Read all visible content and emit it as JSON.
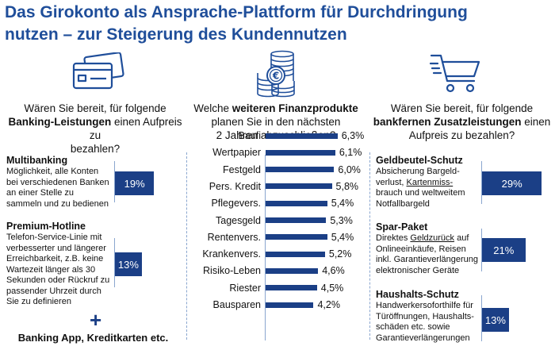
{
  "title_line1": "Das Girokonto als Ansprache-Plattform für Durchdringung",
  "title_line2": "nutzen – zur Steigerung des Kundennutzen",
  "icons": [
    "credit-cards-icon",
    "coin-stack-icon",
    "shopping-cart-icon"
  ],
  "colors": {
    "title": "#1f4e9a",
    "bar": "#1b3f86",
    "axis": "#8aa6cf"
  },
  "left": {
    "question_1": "Wären Sie bereit, für folgende",
    "question_2_bold": "Banking-Leistungen",
    "question_2_rest": " einen Aufpreis zu",
    "question_3": "bezahlen?",
    "items": [
      {
        "title": "Multibanking",
        "desc": [
          "Möglichkeit, alle Konten",
          "bei verschiedenen Banken",
          "an einer Stelle zu",
          "sammeln und zu bedienen"
        ],
        "value_label": "19%"
      },
      {
        "title": "Premium-Hotline",
        "desc": [
          "Telefon-Service-Linie mit",
          "verbesserter und längerer",
          "Erreichbarkeit, z.B. keine",
          "Wartezeit länger als 30",
          "Sekunden oder Rückruf zu",
          "passender Uhrzeit durch",
          "Sie zu definieren"
        ],
        "value_label": "13%"
      }
    ],
    "plus": "+",
    "footer": "Banking App, Kreditkarten etc."
  },
  "middle": {
    "question_1_pre": "Welche ",
    "question_1_bold": "weiteren Finanzprodukte",
    "question_2": "planen Sie in den nächsten",
    "question_3": "2 Jahren abzuschließen?",
    "value_labels": [
      "6,3%",
      "6,1%",
      "6,0%",
      "5,8%",
      "5,4%",
      "5,3%",
      "5,4%",
      "5,2%",
      "4,6%",
      "4,5%",
      "4,2%"
    ]
  },
  "right": {
    "question_1": "Wären Sie bereit, für folgende",
    "question_2_bold": "bankfernen Zusatzleistungen",
    "question_2_rest": " einen",
    "question_3": "Aufpreis zu bezahlen?",
    "items": [
      {
        "title": "Geldbeutel-Schutz",
        "desc_1": "Absicherung Bargeld-",
        "desc_2_pre": "verlust, ",
        "desc_2_u": "Kartenmiss-",
        "desc_3": "brauch und weltweitem",
        "desc_4": "Notfallbargeld",
        "value_label": "29%"
      },
      {
        "title": "Spar-Paket",
        "desc_1_pre": "Direktes ",
        "desc_1_u": "Geldzurück",
        "desc_1_post": " auf",
        "desc_2": "Onlineeinkäufe, Reisen",
        "desc_3": "inkl. Garantieverlängerung",
        "desc_4": "elektronischer Geräte",
        "value_label": "21%"
      },
      {
        "title": "Haushalts-Schutz",
        "desc_1": "Handwerkersoforthilfe für",
        "desc_2": "Türöffnungen, Haushalts-",
        "desc_3": "schäden etc. sowie",
        "desc_4": "Garantieverlängerungen",
        "value_label": "13%"
      }
    ]
  },
  "chart_data": [
    {
      "type": "bar",
      "orientation": "horizontal",
      "categories": [
        "Baufi",
        "Wertpapier",
        "Festgeld",
        "Pers. Kredit",
        "Pflegevers.",
        "Tagesgeld",
        "Rentenvers.",
        "Krankenvers.",
        "Risiko-Leben",
        "Riester",
        "Bausparen"
      ],
      "values": [
        6.3,
        6.1,
        6.0,
        5.8,
        5.4,
        5.3,
        5.4,
        5.2,
        4.6,
        4.5,
        4.2
      ],
      "unit": "%"
    },
    {
      "type": "bar",
      "orientation": "horizontal",
      "categories": [
        "Multibanking",
        "Premium-Hotline"
      ],
      "values": [
        19,
        13
      ],
      "unit": "%"
    },
    {
      "type": "bar",
      "orientation": "horizontal",
      "categories": [
        "Geldbeutel-Schutz",
        "Spar-Paket",
        "Haushalts-Schutz"
      ],
      "values": [
        29,
        21,
        13
      ],
      "unit": "%"
    }
  ]
}
